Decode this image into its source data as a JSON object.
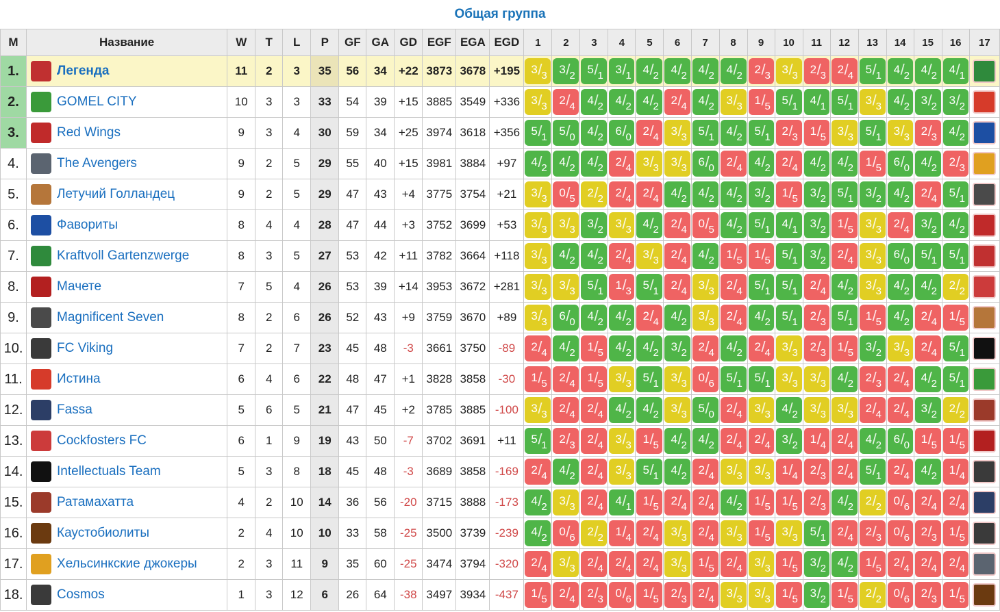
{
  "caption": "Общая группа",
  "headers": {
    "rank": "М",
    "name": "Название",
    "w": "W",
    "t": "T",
    "l": "L",
    "p": "P",
    "gf": "GF",
    "ga": "GA",
    "gd": "GD",
    "egf": "EGF",
    "ega": "EGA",
    "egd": "EGD",
    "opponents": [
      "1",
      "2",
      "3",
      "4",
      "5",
      "6",
      "7",
      "8",
      "9",
      "10",
      "11",
      "12",
      "13",
      "14",
      "15",
      "16",
      "17"
    ]
  },
  "colors": {
    "win": "#4fb548",
    "draw": "#e1ce23",
    "loss": "#ef6363",
    "link": "#1a6fbf",
    "promotion": "#9fd9a3",
    "leader_row": "#fbf6c7"
  },
  "teams": [
    {
      "rank": "1.",
      "name": "Легенда",
      "icon": "legenda-crest-icon",
      "logo_color": "#c03030",
      "w": "11",
      "t": "2",
      "l": "3",
      "p": "35",
      "gf": "56",
      "ga": "34",
      "gd": "+22",
      "egf": "3873",
      "ega": "3678",
      "egd": "+195",
      "results": [
        "3/3",
        "3/2",
        "5/1",
        "3/1",
        "4/2",
        "4/2",
        "4/2",
        "4/2",
        "2/3",
        "3/3",
        "2/3",
        "2/4",
        "5/1",
        "4/2",
        "4/2",
        "4/1"
      ],
      "last_icon": "gnome-icon",
      "last_color": "#2f8a3c"
    },
    {
      "rank": "2.",
      "name": "GOMEL CITY",
      "icon": "gomel-city-badge-icon",
      "logo_color": "#3a9a3a",
      "w": "10",
      "t": "3",
      "l": "3",
      "p": "33",
      "gf": "54",
      "ga": "39",
      "gd": "+15",
      "egf": "3885",
      "ega": "3549",
      "egd": "+336",
      "results": [
        "3/3",
        "2/4",
        "4/2",
        "4/2",
        "4/2",
        "2/4",
        "4/2",
        "3/3",
        "1/5",
        "5/1",
        "4/1",
        "5/1",
        "3/3",
        "4/2",
        "3/2",
        "3/2"
      ],
      "last_icon": "truth-logo-icon",
      "last_color": "#d63b2a"
    },
    {
      "rank": "3.",
      "name": "Red Wings",
      "icon": "red-wings-icon",
      "logo_color": "#c02a2a",
      "w": "9",
      "t": "3",
      "l": "4",
      "p": "30",
      "gf": "59",
      "ga": "34",
      "gd": "+25",
      "egf": "3974",
      "ega": "3618",
      "egd": "+356",
      "results": [
        "5/1",
        "5/0",
        "4/2",
        "6/0",
        "2/4",
        "3/3",
        "5/1",
        "4/2",
        "5/1",
        "2/3",
        "1/5",
        "3/3",
        "5/1",
        "3/3",
        "2/3",
        "4/2"
      ],
      "last_icon": "favority-logo-icon",
      "last_color": "#1d4fa3"
    },
    {
      "rank": "4.",
      "name": "The Avengers",
      "icon": "avengers-icon",
      "logo_color": "#5b6470",
      "w": "9",
      "t": "2",
      "l": "5",
      "p": "29",
      "gf": "55",
      "ga": "40",
      "gd": "+15",
      "egf": "3981",
      "ega": "3884",
      "egd": "+97",
      "results": [
        "4/2",
        "4/2",
        "4/2",
        "2/4",
        "3/3",
        "3/3",
        "6/0",
        "2/4",
        "4/2",
        "2/4",
        "4/2",
        "4/2",
        "1/5",
        "6/0",
        "4/2",
        "2/3"
      ],
      "last_icon": "jester-icon",
      "last_color": "#e0a020"
    },
    {
      "rank": "5.",
      "name": "Летучий Голландец",
      "icon": "flying-dutchman-icon",
      "logo_color": "#b5763a",
      "w": "9",
      "t": "2",
      "l": "5",
      "p": "29",
      "gf": "47",
      "ga": "43",
      "gd": "+4",
      "egf": "3775",
      "ega": "3754",
      "egd": "+21",
      "results": [
        "3/3",
        "0/5",
        "2/2",
        "2/4",
        "2/4",
        "4/2",
        "4/2",
        "4/2",
        "3/2",
        "1/5",
        "3/2",
        "5/1",
        "3/2",
        "4/2",
        "2/4",
        "5/1"
      ],
      "last_icon": "magnificent-seven-icon",
      "last_color": "#4a4a4a"
    },
    {
      "rank": "6.",
      "name": "Фавориты",
      "icon": "favority-logo-icon",
      "logo_color": "#1d4fa3",
      "w": "8",
      "t": "4",
      "l": "4",
      "p": "28",
      "gf": "47",
      "ga": "44",
      "gd": "+3",
      "egf": "3752",
      "ega": "3699",
      "egd": "+53",
      "results": [
        "3/3",
        "3/3",
        "3/2",
        "3/3",
        "4/2",
        "2/4",
        "0/5",
        "4/2",
        "5/1",
        "4/1",
        "3/2",
        "1/5",
        "3/3",
        "2/4",
        "3/2",
        "4/2"
      ],
      "last_icon": "red-wings-icon",
      "last_color": "#c02a2a"
    },
    {
      "rank": "7.",
      "name": "Kraftvoll Gartenzwerge",
      "icon": "gnome-icon",
      "logo_color": "#2f8a3c",
      "w": "8",
      "t": "3",
      "l": "5",
      "p": "27",
      "gf": "53",
      "ga": "42",
      "gd": "+11",
      "egf": "3782",
      "ega": "3664",
      "egd": "+118",
      "results": [
        "3/3",
        "4/2",
        "4/2",
        "2/4",
        "3/3",
        "2/4",
        "4/2",
        "1/5",
        "1/5",
        "5/1",
        "3/2",
        "2/4",
        "3/3",
        "6/0",
        "5/1",
        "5/1"
      ],
      "last_icon": "legenda-crest-icon",
      "last_color": "#c03030"
    },
    {
      "rank": "8.",
      "name": "Мачете",
      "icon": "machete-logo-icon",
      "logo_color": "#b32020",
      "w": "7",
      "t": "5",
      "l": "4",
      "p": "26",
      "gf": "53",
      "ga": "39",
      "gd": "+14",
      "egf": "3953",
      "ega": "3672",
      "egd": "+281",
      "results": [
        "3/3",
        "3/3",
        "5/1",
        "1/3",
        "5/1",
        "2/4",
        "3/3",
        "2/4",
        "5/1",
        "5/1",
        "2/4",
        "4/2",
        "3/3",
        "4/2",
        "4/2",
        "2/2"
      ],
      "last_icon": "rooster-icon",
      "last_color": "#cc3b3b"
    },
    {
      "rank": "9.",
      "name": "Magnificent Seven",
      "icon": "magnificent-seven-icon",
      "logo_color": "#4a4a4a",
      "w": "8",
      "t": "2",
      "l": "6",
      "p": "26",
      "gf": "52",
      "ga": "43",
      "gd": "+9",
      "egf": "3759",
      "ega": "3670",
      "egd": "+89",
      "results": [
        "3/3",
        "6/0",
        "4/2",
        "4/2",
        "2/4",
        "4/2",
        "3/3",
        "2/4",
        "4/2",
        "5/1",
        "2/3",
        "5/1",
        "1/5",
        "4/2",
        "2/4",
        "1/5"
      ],
      "last_icon": "flying-dutchman-icon",
      "last_color": "#b5763a"
    },
    {
      "rank": "10.",
      "name": "FC Viking",
      "icon": "viking-crest-icon",
      "logo_color": "#3a3a3a",
      "w": "7",
      "t": "2",
      "l": "7",
      "p": "23",
      "gf": "45",
      "ga": "48",
      "gd": "-3",
      "egf": "3661",
      "ega": "3750",
      "egd": "-89",
      "results": [
        "2/4",
        "4/2",
        "1/5",
        "4/2",
        "4/2",
        "3/2",
        "2/4",
        "4/2",
        "2/4",
        "3/3",
        "2/3",
        "1/5",
        "3/2",
        "3/3",
        "2/4",
        "5/1"
      ],
      "last_icon": "anonymous-mask-icon",
      "last_color": "#111111"
    },
    {
      "rank": "11.",
      "name": "Истина",
      "icon": "truth-logo-icon",
      "logo_color": "#d63b2a",
      "w": "6",
      "t": "4",
      "l": "6",
      "p": "22",
      "gf": "48",
      "ga": "47",
      "gd": "+1",
      "egf": "3828",
      "ega": "3858",
      "egd": "-30",
      "results": [
        "1/5",
        "2/4",
        "1/5",
        "3/3",
        "5/1",
        "3/3",
        "0/6",
        "5/1",
        "5/1",
        "3/3",
        "3/3",
        "4/2",
        "2/3",
        "2/4",
        "4/2",
        "5/1"
      ],
      "last_icon": "gomel-city-badge-icon",
      "last_color": "#3a9a3a"
    },
    {
      "rank": "12.",
      "name": "Fassa",
      "icon": "fassa-logo-icon",
      "logo_color": "#2c3e66",
      "w": "5",
      "t": "6",
      "l": "5",
      "p": "21",
      "gf": "47",
      "ga": "45",
      "gd": "+2",
      "egf": "3785",
      "ega": "3885",
      "egd": "-100",
      "results": [
        "3/3",
        "2/4",
        "2/4",
        "4/2",
        "4/2",
        "3/3",
        "5/0",
        "2/4",
        "3/3",
        "4/2",
        "3/3",
        "3/3",
        "2/4",
        "2/4",
        "3/2",
        "2/2"
      ],
      "last_icon": "warrior-face-icon",
      "last_color": "#9b3a2a"
    },
    {
      "rank": "13.",
      "name": "Cockfosters FC",
      "icon": "rooster-icon",
      "logo_color": "#cc3b3b",
      "w": "6",
      "t": "1",
      "l": "9",
      "p": "19",
      "gf": "43",
      "ga": "50",
      "gd": "-7",
      "egf": "3702",
      "ega": "3691",
      "egd": "+11",
      "results": [
        "5/1",
        "2/3",
        "2/4",
        "3/3",
        "1/5",
        "4/2",
        "4/2",
        "2/4",
        "2/4",
        "3/2",
        "1/4",
        "2/4",
        "4/2",
        "6/0",
        "1/5",
        "1/5"
      ],
      "last_icon": "machete-logo-icon",
      "last_color": "#b32020"
    },
    {
      "rank": "14.",
      "name": "Intellectuals Team",
      "icon": "anonymous-mask-icon",
      "logo_color": "#111111",
      "w": "5",
      "t": "3",
      "l": "8",
      "p": "18",
      "gf": "45",
      "ga": "48",
      "gd": "-3",
      "egf": "3689",
      "ega": "3858",
      "egd": "-169",
      "results": [
        "2/4",
        "4/2",
        "2/4",
        "3/3",
        "5/1",
        "4/2",
        "2/4",
        "3/3",
        "3/3",
        "1/4",
        "2/3",
        "2/4",
        "5/1",
        "2/4",
        "4/2",
        "1/4"
      ],
      "last_icon": "viking-crest-icon",
      "last_color": "#3a3a3a"
    },
    {
      "rank": "15.",
      "name": "Ратамахатта",
      "icon": "warrior-face-icon",
      "logo_color": "#9b3a2a",
      "w": "4",
      "t": "2",
      "l": "10",
      "p": "14",
      "gf": "36",
      "ga": "56",
      "gd": "-20",
      "egf": "3715",
      "ega": "3888",
      "egd": "-173",
      "results": [
        "4/2",
        "3/3",
        "2/4",
        "4/1",
        "1/5",
        "2/4",
        "2/4",
        "4/2",
        "1/5",
        "1/5",
        "2/3",
        "4/2",
        "2/2",
        "0/6",
        "2/4",
        "2/4"
      ],
      "last_icon": "fassa-logo-icon",
      "last_color": "#2c3e66"
    },
    {
      "rank": "16.",
      "name": "Каустобиолиты",
      "icon": "coal-sphere-icon",
      "logo_color": "#6b3a10",
      "w": "2",
      "t": "4",
      "l": "10",
      "p": "10",
      "gf": "33",
      "ga": "58",
      "gd": "-25",
      "egf": "3500",
      "ega": "3739",
      "egd": "-239",
      "results": [
        "4/2",
        "0/6",
        "2/2",
        "1/4",
        "2/4",
        "3/3",
        "2/4",
        "3/3",
        "1/5",
        "3/3",
        "5/1",
        "2/4",
        "2/3",
        "0/6",
        "2/3",
        "1/5"
      ],
      "last_icon": "cosmos-spiral-icon",
      "last_color": "#3a3a3a"
    },
    {
      "rank": "17.",
      "name": "Хельсинкские джокеры",
      "icon": "jester-icon",
      "logo_color": "#e0a020",
      "w": "2",
      "t": "3",
      "l": "11",
      "p": "9",
      "gf": "35",
      "ga": "60",
      "gd": "-25",
      "egf": "3474",
      "ega": "3794",
      "egd": "-320",
      "results": [
        "2/4",
        "3/3",
        "2/4",
        "2/4",
        "2/4",
        "3/3",
        "1/5",
        "2/4",
        "3/3",
        "1/5",
        "3/2",
        "4/2",
        "1/5",
        "2/4",
        "2/4",
        "2/4"
      ],
      "last_icon": "avengers-icon",
      "last_color": "#5b6470"
    },
    {
      "rank": "18.",
      "name": "Cosmos",
      "icon": "cosmos-spiral-icon",
      "logo_color": "#3a3a3a",
      "w": "1",
      "t": "3",
      "l": "12",
      "p": "6",
      "gf": "26",
      "ga": "64",
      "gd": "-38",
      "egf": "3497",
      "ega": "3934",
      "egd": "-437",
      "results": [
        "1/5",
        "2/4",
        "2/3",
        "0/6",
        "1/5",
        "2/3",
        "2/4",
        "3/3",
        "3/3",
        "1/5",
        "3/2",
        "1/5",
        "2/2",
        "0/6",
        "2/3",
        "1/5"
      ],
      "last_icon": "coal-sphere-icon",
      "last_color": "#6b3a10"
    }
  ]
}
